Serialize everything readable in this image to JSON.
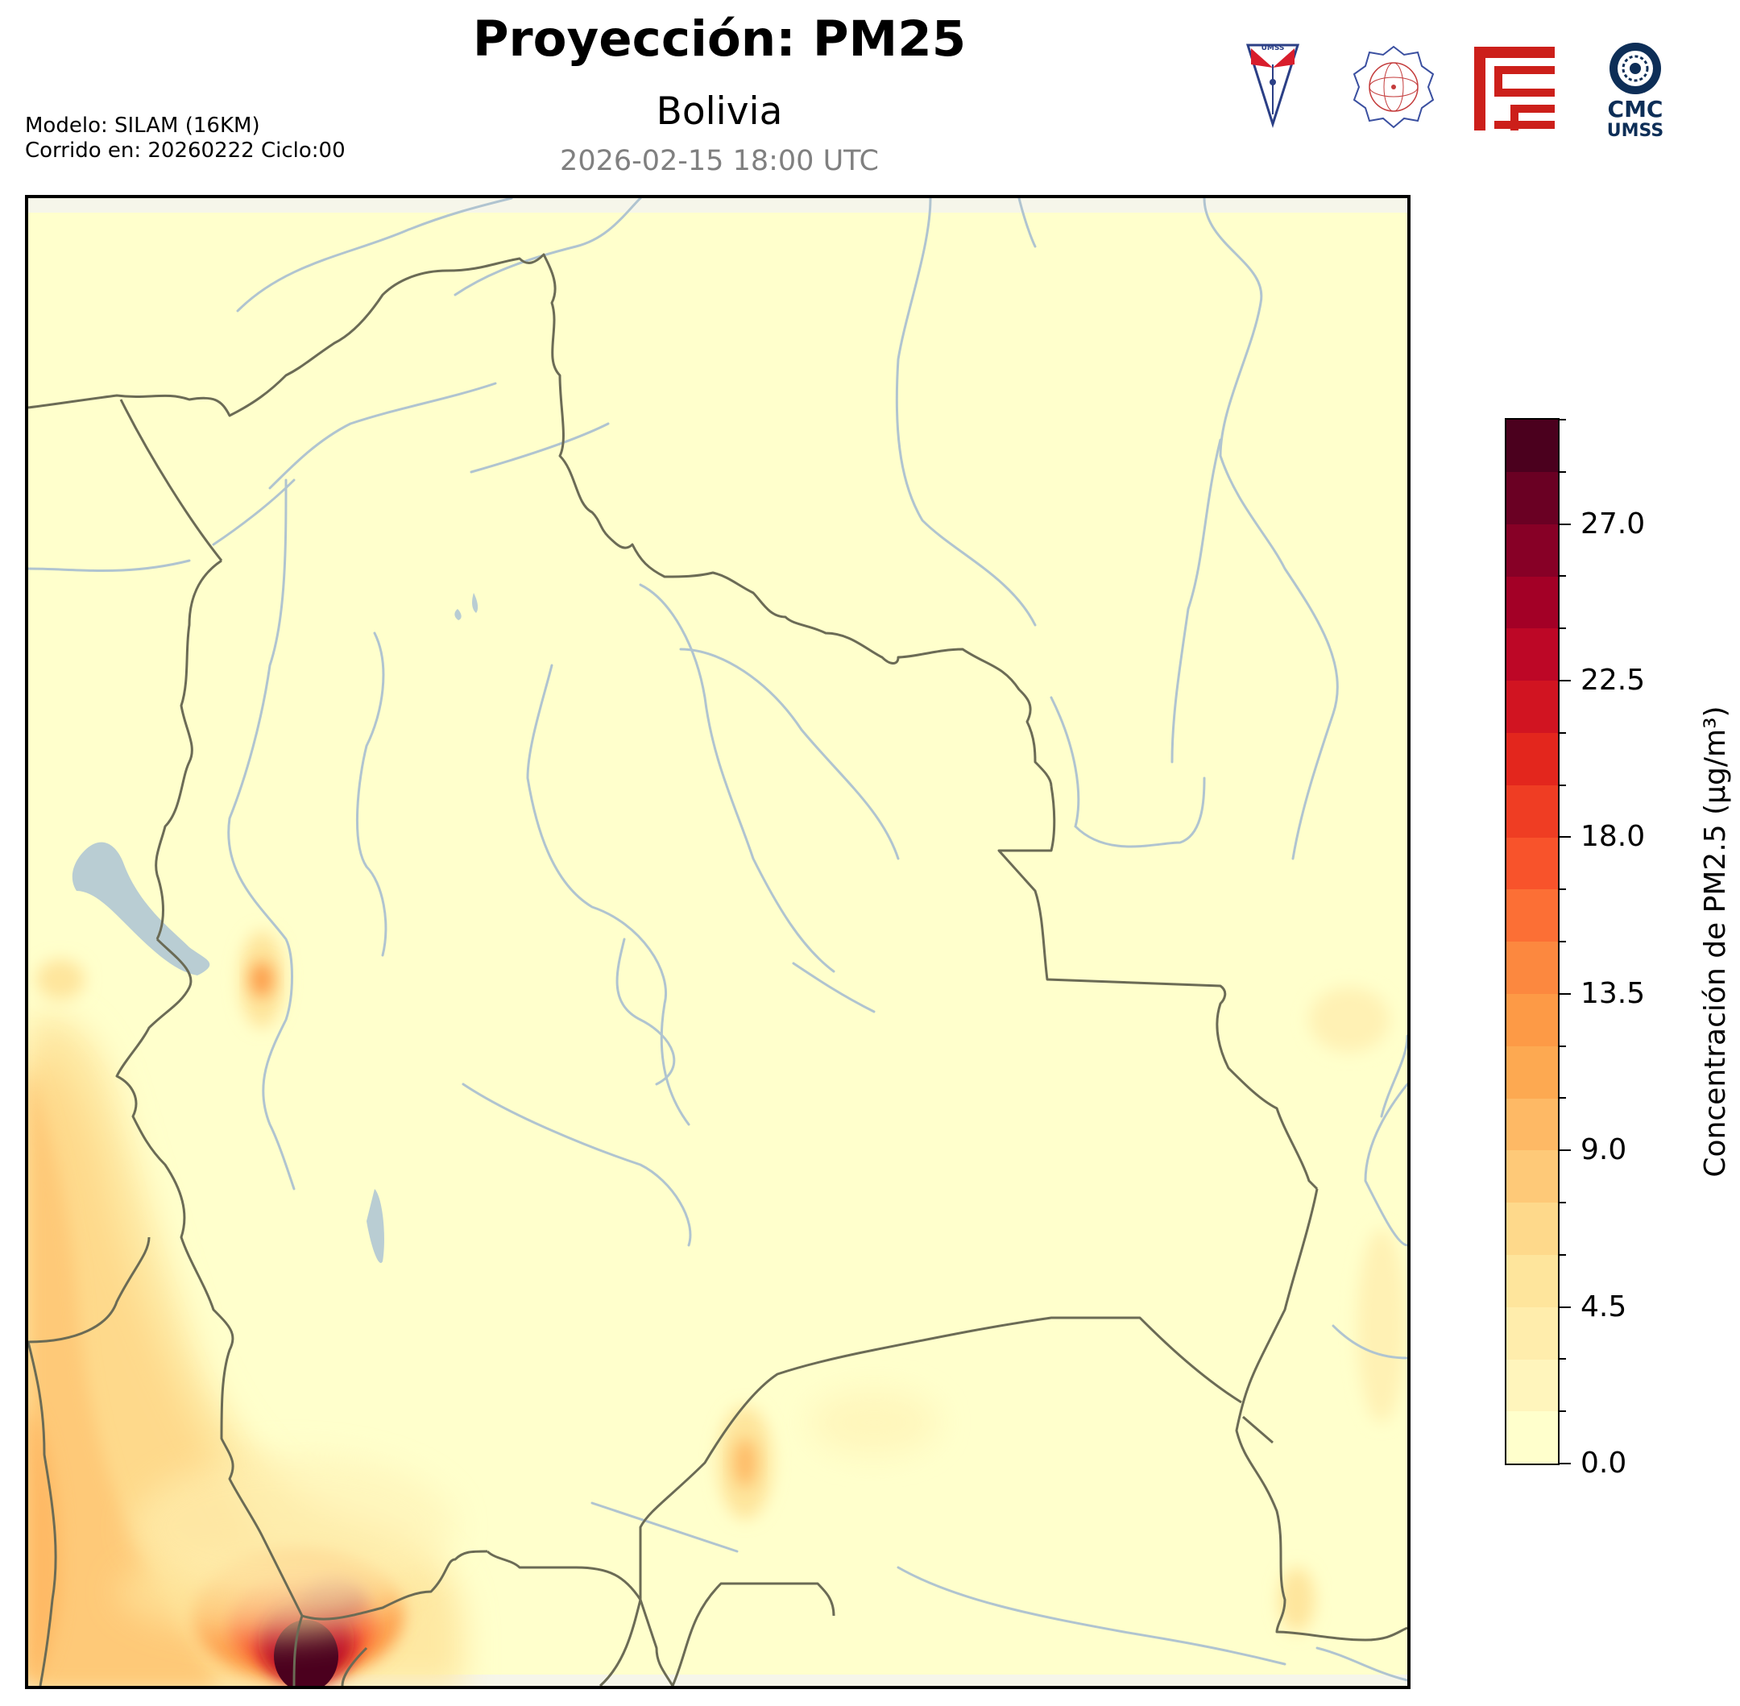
{
  "header": {
    "title": "Proyección: PM25",
    "subtitle": "Bolivia",
    "datetime": "2026-02-15 18:00 UTC",
    "model_line": "Modelo: SILAM (16KM)",
    "run_line": "Corrido en: 20260222 Ciclo:00"
  },
  "logos": [
    {
      "name": "umss-logo",
      "text": "UMSS"
    },
    {
      "name": "fisica-logo",
      "text": "DEPARTAMENTO DE FISICA"
    },
    {
      "name": "fcyt-logo",
      "text": ""
    },
    {
      "name": "cmc-logo",
      "line1": "CMC",
      "line2": "UMSS"
    }
  ],
  "colorbar": {
    "label": "Concentración de PM2.5 (µg/m³)",
    "min": 0,
    "max": 30,
    "tick_values": [
      0.0,
      4.5,
      9.0,
      13.5,
      18.0,
      22.5,
      27.0
    ],
    "tick_labels": [
      "0.0",
      "4.5",
      "9.0",
      "13.5",
      "18.0",
      "22.5",
      "27.0"
    ],
    "colors": [
      "#ffffcc",
      "#fff5bc",
      "#ffedac",
      "#fee59c",
      "#fed98b",
      "#fec978",
      "#feb965",
      "#fda951",
      "#fd9a46",
      "#fc883f",
      "#fc6f35",
      "#f8532b",
      "#ef3d23",
      "#e3261d",
      "#d11421",
      "#bd0726",
      "#a30026",
      "#870026",
      "#6a0023",
      "#4b001e"
    ]
  },
  "map": {
    "region": "Bolivia",
    "colors": {
      "background": "#ffffcc",
      "border": "#6b6b55",
      "rivers": "#b0c4d0",
      "lakes": "#b9cdd3"
    },
    "hotspots": [
      {
        "name": "southwest-chile-border",
        "level": 30
      },
      {
        "name": "west-andes-plume",
        "level": 14
      },
      {
        "name": "east-central-spot",
        "level": 10
      },
      {
        "name": "yungas-spot",
        "level": 12
      }
    ]
  }
}
